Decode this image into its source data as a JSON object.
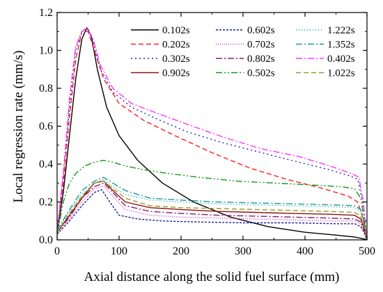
{
  "chart_data": {
    "type": "line",
    "xlabel": "Axial distance along the solid fuel surface (mm)",
    "ylabel": "Local regression rate (mm/s)",
    "xlim": [
      0,
      500
    ],
    "ylim": [
      0,
      1.2
    ],
    "xticks": [
      "0",
      "100",
      "200",
      "300",
      "400",
      "500"
    ],
    "yticks": [
      "0.0",
      "0.2",
      "0.4",
      "0.6",
      "0.8",
      "1.0",
      "1.2"
    ],
    "grid": false,
    "legend_position": "top-right",
    "series": [
      {
        "name": "0.102s",
        "color": "#000000",
        "dash": "solid",
        "x": [
          0,
          10,
          20,
          30,
          40,
          48,
          55,
          65,
          80,
          100,
          130,
          170,
          220,
          280,
          340,
          400,
          450,
          480,
          495,
          500
        ],
        "y": [
          0.04,
          0.25,
          0.55,
          0.85,
          1.06,
          1.12,
          1.08,
          0.9,
          0.7,
          0.55,
          0.42,
          0.3,
          0.2,
          0.12,
          0.07,
          0.04,
          0.025,
          0.015,
          0.005,
          0.0
        ]
      },
      {
        "name": "0.602s",
        "color": "#1a1aa0",
        "dash": "3,2",
        "x": [
          0,
          20,
          40,
          60,
          72,
          85,
          100,
          130,
          170,
          220,
          300,
          380,
          450,
          480,
          490,
          495,
          500
        ],
        "y": [
          0.03,
          0.1,
          0.18,
          0.25,
          0.265,
          0.2,
          0.13,
          0.11,
          0.1,
          0.095,
          0.09,
          0.09,
          0.085,
          0.085,
          0.07,
          0.04,
          0.0
        ]
      },
      {
        "name": "1.222s",
        "color": "#009999",
        "dash": "1,3",
        "x": [
          0,
          20,
          40,
          60,
          75,
          90,
          110,
          150,
          200,
          260,
          320,
          380,
          440,
          480,
          490,
          495,
          500
        ],
        "y": [
          0.05,
          0.15,
          0.24,
          0.3,
          0.32,
          0.28,
          0.24,
          0.21,
          0.2,
          0.19,
          0.185,
          0.18,
          0.175,
          0.17,
          0.15,
          0.1,
          0.0
        ]
      },
      {
        "name": "0.202s",
        "color": "#ff1a1a",
        "dash": "7,4",
        "x": [
          0,
          10,
          20,
          30,
          40,
          50,
          60,
          75,
          100,
          140,
          190,
          250,
          310,
          370,
          430,
          470,
          485,
          493,
          500
        ],
        "y": [
          0.04,
          0.3,
          0.65,
          0.95,
          1.1,
          1.1,
          1.0,
          0.85,
          0.72,
          0.63,
          0.55,
          0.46,
          0.38,
          0.32,
          0.27,
          0.23,
          0.2,
          0.12,
          0.0
        ]
      },
      {
        "name": "0.702s",
        "color": "#cc33cc",
        "dash": "1,2",
        "x": [
          0,
          20,
          40,
          60,
          75,
          90,
          110,
          150,
          200,
          260,
          320,
          380,
          440,
          480,
          490,
          495,
          500
        ],
        "y": [
          0.03,
          0.11,
          0.2,
          0.27,
          0.285,
          0.23,
          0.16,
          0.13,
          0.12,
          0.115,
          0.11,
          0.105,
          0.1,
          0.1,
          0.085,
          0.05,
          0.0
        ]
      },
      {
        "name": "1.352s",
        "color": "#1a9999",
        "dash": "9,3,2,3",
        "x": [
          0,
          20,
          40,
          60,
          75,
          90,
          110,
          150,
          200,
          260,
          320,
          380,
          440,
          480,
          490,
          495,
          500
        ],
        "y": [
          0.05,
          0.16,
          0.26,
          0.31,
          0.33,
          0.3,
          0.26,
          0.22,
          0.21,
          0.2,
          0.195,
          0.19,
          0.185,
          0.18,
          0.16,
          0.1,
          0.0
        ]
      },
      {
        "name": "0.302s",
        "color": "#1f1fcc",
        "dash": "2,4",
        "x": [
          0,
          10,
          20,
          30,
          40,
          48,
          58,
          70,
          90,
          120,
          160,
          210,
          270,
          330,
          390,
          440,
          470,
          485,
          493,
          500
        ],
        "y": [
          0.04,
          0.35,
          0.7,
          1.0,
          1.1,
          1.12,
          1.05,
          0.9,
          0.78,
          0.7,
          0.64,
          0.57,
          0.51,
          0.46,
          0.41,
          0.37,
          0.34,
          0.32,
          0.2,
          0.0
        ]
      },
      {
        "name": "0.802s",
        "color": "#8b1a6b",
        "dash": "9,3,2,3",
        "x": [
          0,
          20,
          40,
          60,
          75,
          90,
          110,
          150,
          200,
          260,
          320,
          380,
          440,
          480,
          490,
          495,
          500
        ],
        "y": [
          0.04,
          0.12,
          0.22,
          0.28,
          0.3,
          0.25,
          0.18,
          0.15,
          0.14,
          0.13,
          0.125,
          0.12,
          0.115,
          0.11,
          0.095,
          0.055,
          0.0
        ]
      },
      {
        "name": "0.402s",
        "color": "#ff33ff",
        "dash": "9,3,2,3",
        "x": [
          0,
          10,
          20,
          30,
          40,
          48,
          58,
          70,
          90,
          120,
          160,
          210,
          270,
          330,
          390,
          440,
          475,
          487,
          494,
          500
        ],
        "y": [
          0.04,
          0.35,
          0.75,
          1.02,
          1.1,
          1.12,
          1.06,
          0.92,
          0.8,
          0.72,
          0.67,
          0.61,
          0.54,
          0.48,
          0.44,
          0.39,
          0.35,
          0.33,
          0.2,
          0.0
        ]
      },
      {
        "name": "0.902s",
        "color": "#8b1010",
        "dash": "solid",
        "x": [
          0,
          20,
          40,
          60,
          75,
          90,
          110,
          150,
          200,
          260,
          320,
          380,
          440,
          480,
          490,
          495,
          500
        ],
        "y": [
          0.04,
          0.13,
          0.22,
          0.3,
          0.31,
          0.26,
          0.2,
          0.17,
          0.16,
          0.15,
          0.145,
          0.14,
          0.135,
          0.13,
          0.11,
          0.065,
          0.0
        ]
      },
      {
        "name": "0.502s",
        "color": "#119911",
        "dash": "9,3,2,3,2,3",
        "x": [
          0,
          10,
          20,
          30,
          45,
          60,
          75,
          90,
          110,
          140,
          180,
          230,
          290,
          350,
          410,
          460,
          480,
          490,
          495,
          500
        ],
        "y": [
          0.03,
          0.2,
          0.3,
          0.35,
          0.39,
          0.41,
          0.42,
          0.41,
          0.39,
          0.37,
          0.35,
          0.33,
          0.31,
          0.3,
          0.29,
          0.28,
          0.27,
          0.22,
          0.12,
          0.0
        ]
      },
      {
        "name": "1.022s",
        "color": "#999920",
        "dash": "7,4",
        "x": [
          0,
          20,
          40,
          60,
          75,
          90,
          110,
          150,
          200,
          260,
          320,
          380,
          440,
          480,
          490,
          495,
          500
        ],
        "y": [
          0.04,
          0.14,
          0.23,
          0.3,
          0.31,
          0.27,
          0.22,
          0.18,
          0.17,
          0.165,
          0.16,
          0.155,
          0.15,
          0.145,
          0.125,
          0.075,
          0.0
        ]
      }
    ]
  }
}
